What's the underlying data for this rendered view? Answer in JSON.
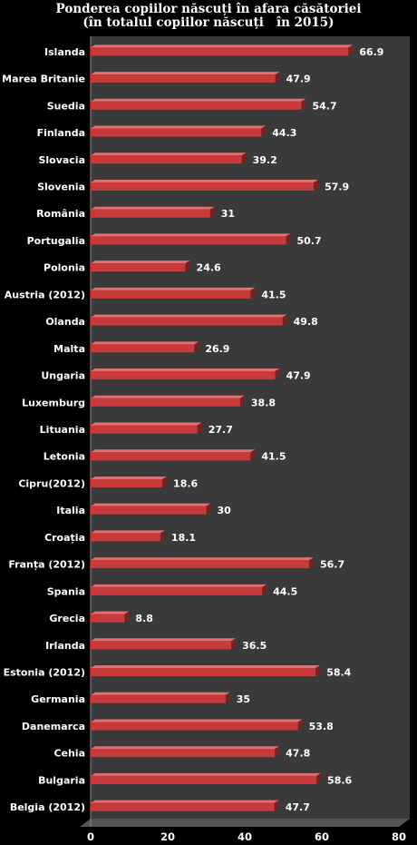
{
  "chart_data": {
    "type": "bar",
    "orientation": "horizontal",
    "title_lines": [
      "Ponderea copiilor născuți în afara căsătoriei",
      "(în totalul copiilor născuți   în 2015)"
    ],
    "categories": [
      "Islanda",
      "Marea Britanie",
      "Suedia",
      "Finlanda",
      "Slovacia",
      "Slovenia",
      "România",
      "Portugalia",
      "Polonia",
      "Austria (2012)",
      "Olanda",
      "Malta",
      "Ungaria",
      "Luxemburg",
      "Lituania",
      "Letonia",
      "Cipru(2012)",
      "Italia",
      "Croația",
      "Franța (2012)",
      "Spania",
      "Grecia",
      "Irlanda",
      "Estonia (2012)",
      "Germania",
      "Danemarca",
      "Cehia",
      "Bulgaria",
      "Belgia (2012)"
    ],
    "values": [
      66.9,
      47.9,
      54.7,
      44.3,
      39.2,
      57.9,
      31,
      50.7,
      24.6,
      41.5,
      49.8,
      26.9,
      47.9,
      38.8,
      27.7,
      41.5,
      18.6,
      30,
      18.1,
      56.7,
      44.5,
      8.8,
      36.5,
      58.4,
      35,
      53.8,
      47.8,
      58.6,
      47.7
    ],
    "value_labels": [
      "66.9",
      "47.9",
      "54.7",
      "44.3",
      "39.2",
      "57.9",
      "31",
      "50.7",
      "24.6",
      "41.5",
      "49.8",
      "26.9",
      "47.9",
      "38.8",
      "27.7",
      "41.5",
      "18.6",
      "30",
      "18.1",
      "56.7",
      "44.5",
      "8.8",
      "36.5",
      "58.4",
      "35",
      "53.8",
      "47.8",
      "58.6",
      "47.7"
    ],
    "xlim": [
      0,
      80
    ],
    "xticks": [
      0,
      20,
      40,
      60,
      80
    ],
    "xtick_labels": [
      "0",
      "20",
      "40",
      "60",
      "80"
    ],
    "grid": false,
    "legend": "none",
    "colors": {
      "background": "#000000",
      "plot_back": "#3a3a3a",
      "plot_floor": "#555555",
      "bar_front": "#c83a3a",
      "bar_top": "#e27070",
      "bar_side": "#7e1e1e",
      "text": "#ffffff"
    }
  }
}
